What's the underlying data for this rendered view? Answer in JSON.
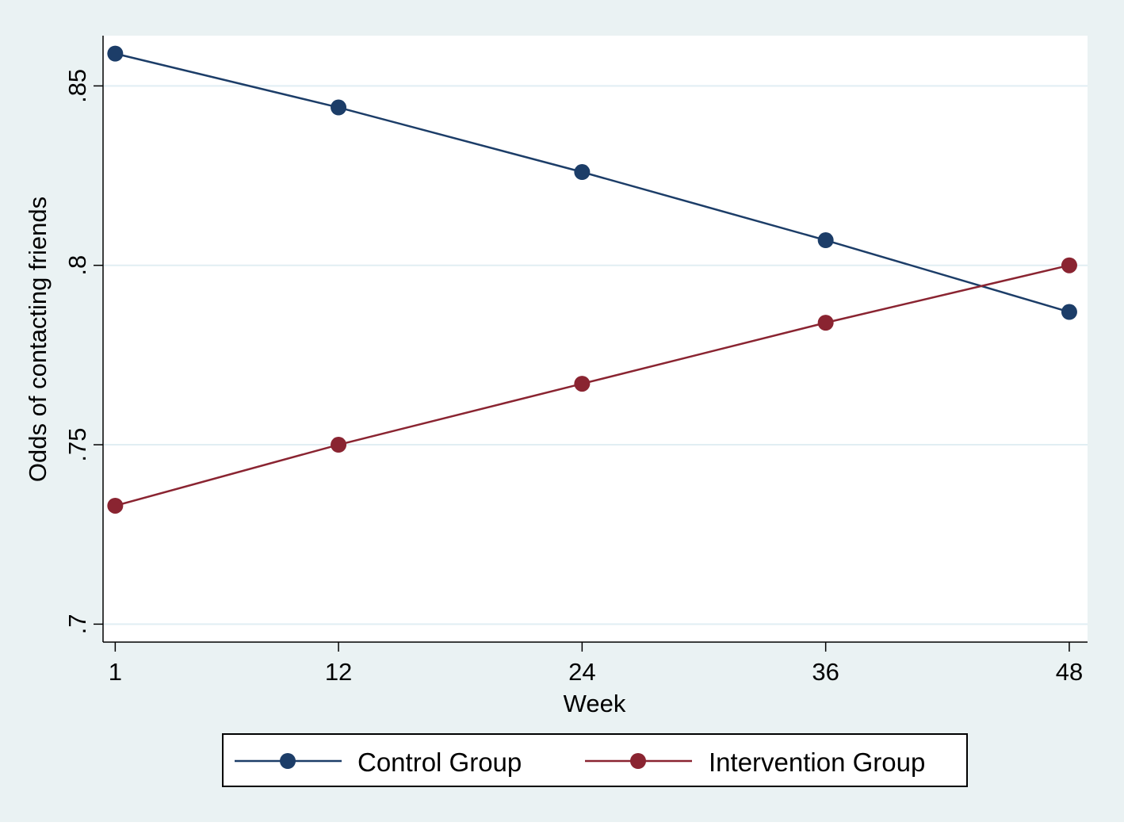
{
  "chart_data": {
    "type": "line",
    "title": "",
    "xlabel": "Week",
    "ylabel": "Odds of contacting friends",
    "x": [
      1,
      12,
      24,
      36,
      48
    ],
    "x_ticks": [
      1,
      12,
      24,
      36,
      48
    ],
    "x_tick_labels": [
      "1",
      "12",
      "24",
      "36",
      "48"
    ],
    "y_ticks": [
      0.7,
      0.75,
      0.8,
      0.85
    ],
    "y_tick_labels": [
      ".7",
      ".75",
      ".8",
      ".85"
    ],
    "ylim": [
      0.695,
      0.864
    ],
    "xlim": [
      0.4,
      48.9
    ],
    "grid": true,
    "legend_position": "bottom",
    "series": [
      {
        "name": "Control Group",
        "color": "#1c3d68",
        "values": [
          0.859,
          0.844,
          0.826,
          0.807,
          0.787
        ]
      },
      {
        "name": "Intervention Group",
        "color": "#8a2431",
        "values": [
          0.733,
          0.75,
          0.767,
          0.784,
          0.8
        ]
      }
    ],
    "colors": {
      "outer_background": "#eaf2f3",
      "plot_background": "#ffffff",
      "gridline": "#e1eef3"
    }
  }
}
